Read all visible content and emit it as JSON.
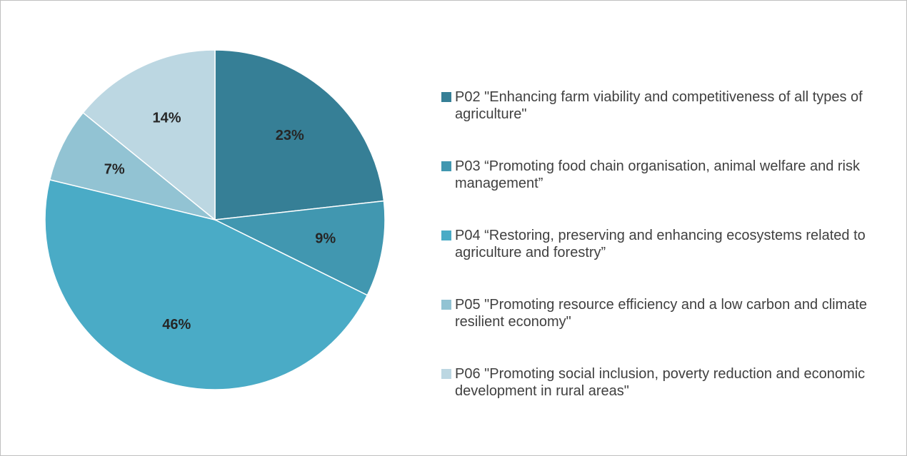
{
  "chart_data": {
    "type": "pie",
    "categories": [
      "P02 \"Enhancing farm viability and competitiveness of all types of agriculture\"",
      "P03 “Promoting food chain organisation, animal welfare and risk management”",
      "P04 “Restoring, preserving and enhancing ecosystems related to agriculture and forestry”",
      "P05 \"Promoting resource efficiency and a low carbon and climate resilient economy\"",
      "P06 \"Promoting social inclusion, poverty reduction and economic development in rural areas\""
    ],
    "values": [
      23,
      9,
      46,
      7,
      14
    ],
    "value_labels": [
      "23%",
      "9%",
      "46%",
      "7%",
      "14%"
    ],
    "colors": [
      "#367f96",
      "#4197b0",
      "#4aabc6",
      "#92c3d3",
      "#bcd7e2"
    ],
    "legend": "right"
  }
}
